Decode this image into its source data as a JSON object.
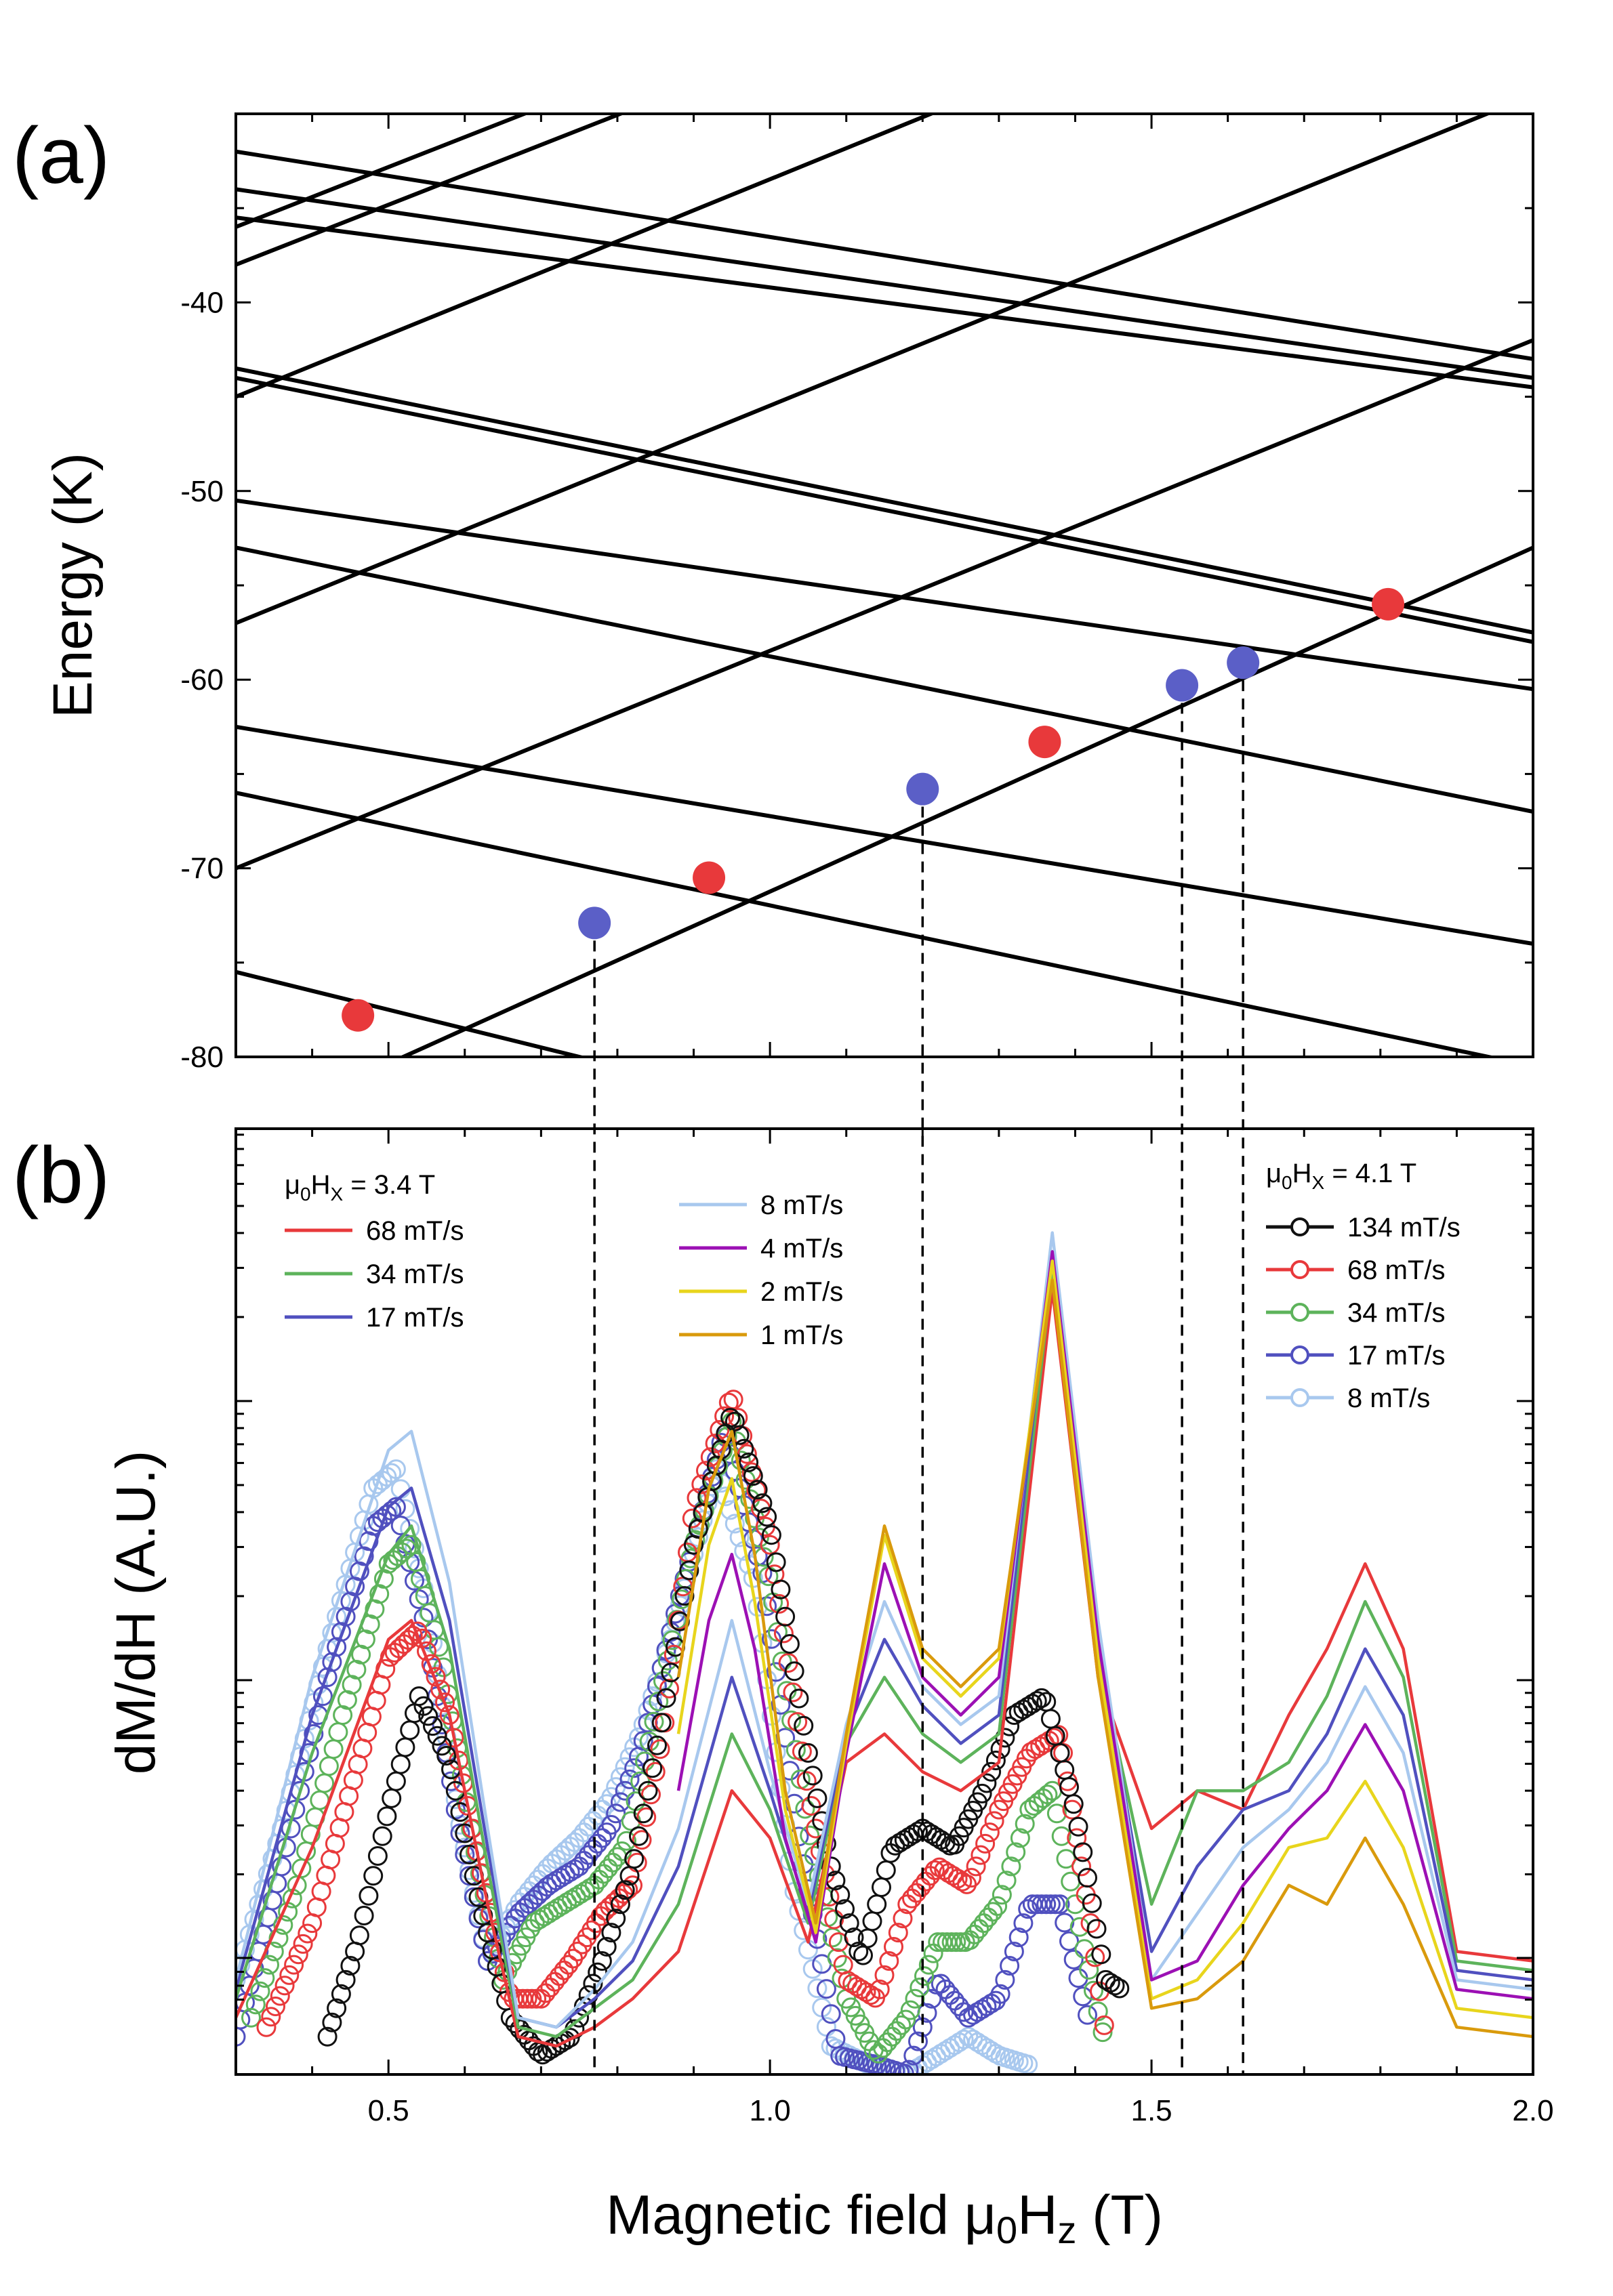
{
  "chart_data": [
    {
      "panel": "(a)",
      "type": "line",
      "ylabel": "Energy (K)",
      "xlim": [
        0.3,
        2.0
      ],
      "ylim": [
        -80,
        -30
      ],
      "yticks": [
        -80,
        -70,
        -60,
        -50,
        -40
      ],
      "series": [
        {
          "name": "level-01",
          "x": [
            0.3,
            2.0
          ],
          "values": [
            -32.0,
            -43.0
          ]
        },
        {
          "name": "level-02",
          "x": [
            0.3,
            2.0
          ],
          "values": [
            -34.0,
            -44.0
          ]
        },
        {
          "name": "level-03",
          "x": [
            0.3,
            2.0
          ],
          "values": [
            -35.5,
            -44.5
          ]
        },
        {
          "name": "level-04",
          "x": [
            0.3,
            2.0
          ],
          "values": [
            -43.5,
            -57.5
          ]
        },
        {
          "name": "level-05",
          "x": [
            0.3,
            2.0
          ],
          "values": [
            -44.0,
            -58.0
          ]
        },
        {
          "name": "level-06",
          "x": [
            0.3,
            2.0
          ],
          "values": [
            -50.5,
            -60.5
          ]
        },
        {
          "name": "level-07",
          "x": [
            0.3,
            2.0
          ],
          "values": [
            -53.0,
            -67.0
          ]
        },
        {
          "name": "level-08",
          "x": [
            0.3,
            2.0
          ],
          "values": [
            -62.5,
            -74.0
          ]
        },
        {
          "name": "level-09",
          "x": [
            0.3,
            2.0
          ],
          "values": [
            -66.0,
            -80.5
          ]
        },
        {
          "name": "level-10",
          "x": [
            0.3,
            1.5
          ],
          "values": [
            -75.5,
            -87.5
          ]
        },
        {
          "name": "level-11",
          "x": [
            0.3,
            2.0
          ],
          "values": [
            -84.0,
            -53.0
          ]
        },
        {
          "name": "level-12",
          "x": [
            0.3,
            2.0
          ],
          "values": [
            -70.0,
            -42.0
          ]
        },
        {
          "name": "level-13",
          "x": [
            0.3,
            2.0
          ],
          "values": [
            -57.0,
            -29.0
          ]
        },
        {
          "name": "level-14",
          "x": [
            0.3,
            2.0
          ],
          "values": [
            -45.0,
            -17.0
          ]
        },
        {
          "name": "level-15",
          "x": [
            0.3,
            2.0
          ],
          "values": [
            -38.0,
            -11.0
          ]
        },
        {
          "name": "level-16",
          "x": [
            0.3,
            2.0
          ],
          "values": [
            -36.0,
            -9.0
          ]
        }
      ],
      "markers": [
        {
          "x": 0.46,
          "y": -77.8,
          "color": "red"
        },
        {
          "x": 0.77,
          "y": -72.9,
          "color": "blue"
        },
        {
          "x": 0.92,
          "y": -70.5,
          "color": "red"
        },
        {
          "x": 1.2,
          "y": -65.8,
          "color": "blue"
        },
        {
          "x": 1.36,
          "y": -63.3,
          "color": "red"
        },
        {
          "x": 1.54,
          "y": -60.3,
          "color": "blue"
        },
        {
          "x": 1.62,
          "y": -59.1,
          "color": "blue"
        },
        {
          "x": 1.81,
          "y": -56.0,
          "color": "red"
        }
      ],
      "guide_lines_x": [
        0.77,
        1.2,
        1.54,
        1.62
      ]
    },
    {
      "panel": "(b)",
      "type": "line",
      "xlabel": "Magnetic field μ0Hz (T)",
      "ylabel": "dM/dH (A.U.)",
      "xlim": [
        0.3,
        2.0
      ],
      "ylim": [
        0,
        1
      ],
      "xticks": [
        0.5,
        1.0,
        1.5,
        2.0
      ],
      "xtick_labels": [
        "0.5",
        "1.0",
        "1.5",
        "2.0"
      ],
      "legend_left": {
        "title": "μ0HX = 3.4 T",
        "entries": [
          "68 mT/s",
          "34 mT/s",
          "17 mT/s",
          "8 mT/s",
          "4 mT/s",
          "2 mT/s",
          "1 mT/s"
        ]
      },
      "legend_right": {
        "title": "μ0HX = 4.1 T",
        "entries": [
          "134 mT/s",
          "68 mT/s",
          "34 mT/s",
          "17 mT/s",
          "8 mT/s"
        ]
      },
      "series": [
        {
          "name": "68 mT/s",
          "field": "3.4 T",
          "style": "line",
          "color": "#e8393b",
          "x": [
            0.3,
            0.4,
            0.5,
            0.53,
            0.58,
            0.63,
            0.67,
            0.72,
            0.77,
            0.82,
            0.88,
            0.95,
            1.0,
            1.05,
            1.1,
            1.15,
            1.2,
            1.25,
            1.3,
            1.37,
            1.43,
            1.5,
            1.56,
            1.62,
            1.68,
            1.73,
            1.78,
            1.83,
            1.9,
            2.0
          ],
          "values": [
            0.06,
            0.24,
            0.46,
            0.48,
            0.38,
            0.18,
            0.04,
            0.03,
            0.05,
            0.08,
            0.13,
            0.3,
            0.25,
            0.14,
            0.33,
            0.36,
            0.32,
            0.3,
            0.33,
            0.83,
            0.42,
            0.26,
            0.3,
            0.28,
            0.38,
            0.45,
            0.54,
            0.45,
            0.13,
            0.12
          ]
        },
        {
          "name": "34 mT/s",
          "field": "3.4 T",
          "style": "line",
          "color": "#5db35b",
          "x": [
            0.3,
            0.4,
            0.5,
            0.53,
            0.58,
            0.63,
            0.67,
            0.72,
            0.77,
            0.82,
            0.88,
            0.95,
            1.0,
            1.05,
            1.1,
            1.15,
            1.2,
            1.25,
            1.3,
            1.37,
            1.43,
            1.5,
            1.56,
            1.62,
            1.68,
            1.73,
            1.78,
            1.83,
            1.9,
            2.0
          ],
          "values": [
            0.08,
            0.34,
            0.55,
            0.58,
            0.45,
            0.22,
            0.05,
            0.04,
            0.07,
            0.1,
            0.18,
            0.36,
            0.28,
            0.16,
            0.35,
            0.42,
            0.36,
            0.33,
            0.36,
            0.85,
            0.44,
            0.18,
            0.3,
            0.3,
            0.33,
            0.4,
            0.5,
            0.42,
            0.12,
            0.11
          ]
        },
        {
          "name": "17 mT/s",
          "field": "3.4 T",
          "style": "line",
          "color": "#5050bf",
          "x": [
            0.3,
            0.4,
            0.5,
            0.53,
            0.58,
            0.63,
            0.67,
            0.72,
            0.77,
            0.82,
            0.88,
            0.95,
            1.0,
            1.05,
            1.1,
            1.15,
            1.2,
            1.25,
            1.3,
            1.37,
            1.43,
            1.5,
            1.56,
            1.62,
            1.68,
            1.73,
            1.78,
            1.83,
            1.9,
            2.0
          ],
          "values": [
            0.09,
            0.38,
            0.6,
            0.62,
            0.48,
            0.24,
            0.06,
            0.05,
            0.08,
            0.12,
            0.22,
            0.42,
            0.3,
            0.17,
            0.36,
            0.46,
            0.39,
            0.35,
            0.38,
            0.87,
            0.46,
            0.13,
            0.22,
            0.28,
            0.3,
            0.36,
            0.45,
            0.38,
            0.11,
            0.1
          ]
        },
        {
          "name": "8 mT/s",
          "field": "3.4 T",
          "style": "line",
          "color": "#a8c8ee",
          "x": [
            0.3,
            0.4,
            0.5,
            0.53,
            0.58,
            0.63,
            0.67,
            0.72,
            0.77,
            0.82,
            0.88,
            0.95,
            1.0,
            1.05,
            1.1,
            1.15,
            1.2,
            1.25,
            1.3,
            1.37,
            1.43,
            1.5,
            1.56,
            1.62,
            1.68,
            1.73,
            1.78,
            1.83,
            1.9,
            2.0
          ],
          "values": [
            0.1,
            0.42,
            0.66,
            0.68,
            0.52,
            0.26,
            0.06,
            0.05,
            0.09,
            0.14,
            0.26,
            0.48,
            0.32,
            0.18,
            0.37,
            0.5,
            0.41,
            0.37,
            0.4,
            0.89,
            0.48,
            0.1,
            0.17,
            0.24,
            0.28,
            0.33,
            0.41,
            0.34,
            0.1,
            0.09
          ]
        },
        {
          "name": "4 mT/s",
          "field": "3.4 T",
          "style": "line",
          "color": "#9c10b4",
          "x": [
            0.88,
            0.92,
            0.95,
            0.98,
            1.02,
            1.06,
            1.1,
            1.15,
            1.2,
            1.25,
            1.3,
            1.37,
            1.43,
            1.5,
            1.56,
            1.62,
            1.68,
            1.73,
            1.78,
            1.83,
            1.9,
            2.0
          ],
          "values": [
            0.3,
            0.48,
            0.55,
            0.45,
            0.25,
            0.14,
            0.34,
            0.54,
            0.42,
            0.38,
            0.42,
            0.87,
            0.46,
            0.1,
            0.12,
            0.2,
            0.26,
            0.3,
            0.37,
            0.3,
            0.09,
            0.08
          ]
        },
        {
          "name": "2 mT/s",
          "field": "3.4 T",
          "style": "line",
          "color": "#e8d51c",
          "x": [
            0.88,
            0.92,
            0.95,
            0.98,
            1.02,
            1.06,
            1.1,
            1.15,
            1.2,
            1.25,
            1.3,
            1.37,
            1.43,
            1.5,
            1.56,
            1.62,
            1.68,
            1.73,
            1.78,
            1.83,
            1.9,
            2.0
          ],
          "values": [
            0.36,
            0.56,
            0.63,
            0.5,
            0.28,
            0.15,
            0.35,
            0.57,
            0.44,
            0.4,
            0.44,
            0.86,
            0.44,
            0.08,
            0.1,
            0.16,
            0.24,
            0.25,
            0.31,
            0.24,
            0.07,
            0.06
          ]
        },
        {
          "name": "1 mT/s",
          "field": "3.4 T",
          "style": "line",
          "color": "#d99a0c",
          "x": [
            0.88,
            0.92,
            0.95,
            0.98,
            1.02,
            1.06,
            1.1,
            1.15,
            1.2,
            1.25,
            1.3,
            1.37,
            1.43,
            1.5,
            1.56,
            1.62,
            1.68,
            1.73,
            1.78,
            1.83,
            1.9,
            2.0
          ],
          "values": [
            0.42,
            0.62,
            0.68,
            0.55,
            0.3,
            0.16,
            0.36,
            0.58,
            0.45,
            0.41,
            0.45,
            0.84,
            0.42,
            0.07,
            0.08,
            0.12,
            0.2,
            0.18,
            0.25,
            0.18,
            0.05,
            0.04
          ]
        },
        {
          "name": "134 mT/s",
          "field": "4.1 T",
          "style": "circles",
          "color": "#111111",
          "x": [
            0.42,
            0.46,
            0.5,
            0.54,
            0.58,
            0.62,
            0.66,
            0.7,
            0.74,
            0.78,
            0.82,
            0.86,
            0.9,
            0.95,
            1.0,
            1.05,
            1.08,
            1.12,
            1.16,
            1.2,
            1.24,
            1.28,
            1.32,
            1.36,
            1.4,
            1.44,
            1.46
          ],
          "values": [
            0.04,
            0.14,
            0.28,
            0.4,
            0.33,
            0.18,
            0.06,
            0.02,
            0.04,
            0.12,
            0.22,
            0.38,
            0.56,
            0.7,
            0.58,
            0.34,
            0.22,
            0.12,
            0.24,
            0.26,
            0.24,
            0.3,
            0.38,
            0.4,
            0.28,
            0.1,
            0.09
          ]
        },
        {
          "name": "68 mT/s",
          "field": "4.1 T",
          "style": "circles",
          "color": "#e8393b",
          "x": [
            0.34,
            0.4,
            0.45,
            0.5,
            0.54,
            0.58,
            0.62,
            0.66,
            0.7,
            0.74,
            0.78,
            0.82,
            0.86,
            0.9,
            0.95,
            1.0,
            1.05,
            1.1,
            1.14,
            1.18,
            1.22,
            1.26,
            1.3,
            1.34,
            1.38,
            1.42,
            1.44
          ],
          "values": [
            0.05,
            0.16,
            0.3,
            0.44,
            0.47,
            0.38,
            0.22,
            0.08,
            0.08,
            0.12,
            0.17,
            0.2,
            0.36,
            0.6,
            0.72,
            0.56,
            0.3,
            0.1,
            0.08,
            0.18,
            0.22,
            0.2,
            0.28,
            0.34,
            0.36,
            0.16,
            0.04
          ]
        },
        {
          "name": "34 mT/s",
          "field": "4.1 T",
          "style": "circles",
          "color": "#5db35b",
          "x": [
            0.32,
            0.38,
            0.44,
            0.5,
            0.53,
            0.57,
            0.61,
            0.65,
            0.69,
            0.73,
            0.77,
            0.81,
            0.85,
            0.9,
            0.95,
            1.0,
            1.05,
            1.1,
            1.14,
            1.18,
            1.22,
            1.26,
            1.3,
            1.34,
            1.37,
            1.41,
            1.44
          ],
          "values": [
            0.06,
            0.2,
            0.38,
            0.54,
            0.56,
            0.44,
            0.25,
            0.1,
            0.16,
            0.18,
            0.2,
            0.24,
            0.38,
            0.56,
            0.69,
            0.52,
            0.26,
            0.08,
            0.02,
            0.06,
            0.14,
            0.14,
            0.18,
            0.28,
            0.3,
            0.14,
            0.03
          ]
        },
        {
          "name": "17 mT/s",
          "field": "4.1 T",
          "style": "circles",
          "color": "#5050bf",
          "x": [
            0.3,
            0.36,
            0.42,
            0.48,
            0.51,
            0.55,
            0.59,
            0.63,
            0.67,
            0.71,
            0.75,
            0.79,
            0.83,
            0.88,
            0.94,
            0.99,
            1.04,
            1.09,
            1.14,
            1.18,
            1.22,
            1.26,
            1.3,
            1.34,
            1.38,
            1.42
          ],
          "values": [
            0.04,
            0.22,
            0.42,
            0.58,
            0.6,
            0.47,
            0.27,
            0.12,
            0.17,
            0.2,
            0.22,
            0.26,
            0.34,
            0.5,
            0.68,
            0.53,
            0.24,
            0.02,
            0.01,
            0.0,
            0.1,
            0.06,
            0.08,
            0.18,
            0.18,
            0.05
          ]
        },
        {
          "name": "8 mT/s",
          "field": "4.1 T",
          "style": "circles",
          "color": "#a8c8ee",
          "x": [
            0.3,
            0.36,
            0.42,
            0.48,
            0.51,
            0.55,
            0.59,
            0.63,
            0.67,
            0.71,
            0.75,
            0.79,
            0.83,
            0.87,
            0.93,
            0.98,
            1.03,
            1.08,
            1.13,
            1.18,
            1.22,
            1.26,
            1.3,
            1.34
          ],
          "values": [
            0.1,
            0.26,
            0.45,
            0.62,
            0.64,
            0.5,
            0.28,
            0.12,
            0.18,
            0.22,
            0.25,
            0.29,
            0.36,
            0.46,
            0.64,
            0.52,
            0.2,
            0.03,
            0.01,
            0.0,
            0.02,
            0.04,
            0.02,
            0.01
          ]
        }
      ]
    }
  ],
  "colors": {
    "red": "#e8393b",
    "blue": "#5b5fc7",
    "green": "#5db35b",
    "indigo": "#5050bf",
    "light_blue": "#a8c8ee",
    "purple": "#9c10b4",
    "yellow": "#e8d51c",
    "orange": "#d99a0c",
    "black": "#111111"
  }
}
